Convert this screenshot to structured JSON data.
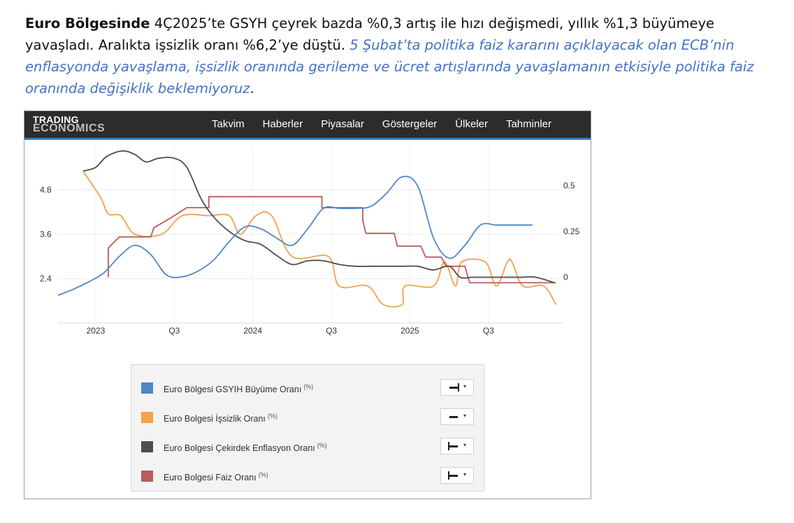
{
  "intro": {
    "bold_lead": "Euro Bölgesinde",
    "plain_text": " 4Ç2025’te GSYH çeyrek bazda %0,3 artış ile hızı değişmedi, yıllık %1,3 büyümeye yavaşladı. Aralıkta işsizlik oranı %6,2’ye düştü. ",
    "italic_text": "5 Şubat’ta politika faiz kararını açıklayacak olan ECB’nin enflasyonda yavaşlama, işsizlik oranında gerileme ve ücret artışlarında yavaşlamanın etkisiyle politika faiz oranında değişiklik beklemiyoruz",
    "end_period": "."
  },
  "header": {
    "logo_line1": "TRADING",
    "logo_line2": "ECONOMICS",
    "nav": [
      "Takvim",
      "Haberler",
      "Piyasalar",
      "Göstergeler",
      "Ülkeler",
      "Tahminler"
    ]
  },
  "colors": {
    "gdp": "#4f86c6",
    "unemployment": "#f4a14b",
    "core_inflation": "#4d4d4d",
    "interest_rate": "#b85c5c",
    "header_bg": "#2c2c2c",
    "header_accent": "#3a77b7"
  },
  "legend": {
    "items": [
      {
        "label": "Euro Bölgesi GSYIH Büyüme Oranı",
        "unit": "(%)",
        "color_key": "gdp",
        "icon": "bar-right-icon"
      },
      {
        "label": "Euro Bolgesi İşsizlik Oranı",
        "unit": "(%)",
        "color_key": "unemployment",
        "icon": "bar-icon"
      },
      {
        "label": "Euro Bolgesi Çekirdek Enflasyon Oranı",
        "unit": "(%)",
        "color_key": "core_inflation",
        "icon": "bar-left-icon"
      },
      {
        "label": "Euro Bolgesi Faiz Oranı",
        "unit": "(%)",
        "color_key": "interest_rate",
        "icon": "bar-left-icon"
      }
    ]
  },
  "chart_data": {
    "type": "line",
    "x_tick_labels": [
      {
        "t": 2023.0,
        "label": "2023"
      },
      {
        "t": 2023.5,
        "label": "Q3"
      },
      {
        "t": 2024.0,
        "label": "2024"
      },
      {
        "t": 2024.5,
        "label": "Q3"
      },
      {
        "t": 2025.0,
        "label": "2025"
      },
      {
        "t": 2025.5,
        "label": "Q3"
      }
    ],
    "xlim": [
      2022.76,
      2025.95
    ],
    "left_axis": {
      "ticks": [
        2.4,
        3.6,
        4.8
      ],
      "ylim": [
        1.2,
        6.0
      ]
    },
    "right_axis": {
      "ticks": [
        0,
        0.25,
        0.5
      ],
      "ylim": [
        -0.25,
        0.72
      ]
    },
    "grid": true,
    "legend_position": "bottom",
    "series": [
      {
        "name": "Euro Bölgesi GSYIH Büyüme Oranı",
        "axis": "left",
        "color_key": "gdp",
        "style": "smooth",
        "points": [
          [
            2022.76,
            1.95
          ],
          [
            2022.85,
            2.1
          ],
          [
            2022.95,
            2.3
          ],
          [
            2023.05,
            2.55
          ],
          [
            2023.15,
            3.0
          ],
          [
            2023.25,
            3.3
          ],
          [
            2023.35,
            3.05
          ],
          [
            2023.45,
            2.5
          ],
          [
            2023.55,
            2.45
          ],
          [
            2023.65,
            2.6
          ],
          [
            2023.75,
            2.9
          ],
          [
            2023.85,
            3.4
          ],
          [
            2023.95,
            3.8
          ],
          [
            2024.05,
            3.75
          ],
          [
            2024.15,
            3.5
          ],
          [
            2024.25,
            3.3
          ],
          [
            2024.35,
            3.75
          ],
          [
            2024.45,
            4.3
          ],
          [
            2024.55,
            4.3
          ],
          [
            2024.65,
            4.3
          ],
          [
            2024.75,
            4.35
          ],
          [
            2024.85,
            4.7
          ],
          [
            2024.95,
            5.15
          ],
          [
            2025.05,
            4.9
          ],
          [
            2025.15,
            3.5
          ],
          [
            2025.25,
            2.95
          ],
          [
            2025.35,
            3.3
          ],
          [
            2025.45,
            3.85
          ],
          [
            2025.55,
            3.85
          ],
          [
            2025.65,
            3.85
          ],
          [
            2025.78,
            3.85
          ]
        ]
      },
      {
        "name": "Euro Bolgesi İşsizlik Oranı",
        "axis": "left",
        "color_key": "unemployment",
        "style": "smooth",
        "points": [
          [
            2022.92,
            5.3
          ],
          [
            2023.03,
            4.6
          ],
          [
            2023.08,
            4.15
          ],
          [
            2023.16,
            4.1
          ],
          [
            2023.25,
            3.6
          ],
          [
            2023.42,
            3.6
          ],
          [
            2023.55,
            4.1
          ],
          [
            2023.72,
            4.1
          ],
          [
            2023.85,
            4.1
          ],
          [
            2023.92,
            3.6
          ],
          [
            2024.02,
            4.1
          ],
          [
            2024.12,
            4.1
          ],
          [
            2024.25,
            3.0
          ],
          [
            2024.48,
            3.0
          ],
          [
            2024.55,
            2.2
          ],
          [
            2024.73,
            2.2
          ],
          [
            2024.83,
            1.7
          ],
          [
            2024.95,
            1.7
          ],
          [
            2024.97,
            2.2
          ],
          [
            2025.15,
            2.2
          ],
          [
            2025.22,
            2.85
          ],
          [
            2025.29,
            2.2
          ],
          [
            2025.33,
            2.85
          ],
          [
            2025.48,
            2.85
          ],
          [
            2025.55,
            2.2
          ],
          [
            2025.62,
            2.85
          ],
          [
            2025.65,
            2.85
          ],
          [
            2025.72,
            2.2
          ],
          [
            2025.85,
            2.2
          ],
          [
            2025.93,
            1.7
          ]
        ]
      },
      {
        "name": "Euro Bolgesi Çekirdek Enflasyon Oranı",
        "axis": "right",
        "color_key": "core_inflation",
        "style": "smooth",
        "points": [
          [
            2022.92,
            0.58
          ],
          [
            2023.0,
            0.6
          ],
          [
            2023.07,
            0.66
          ],
          [
            2023.17,
            0.69
          ],
          [
            2023.25,
            0.67
          ],
          [
            2023.32,
            0.63
          ],
          [
            2023.4,
            0.65
          ],
          [
            2023.5,
            0.65
          ],
          [
            2023.58,
            0.6
          ],
          [
            2023.67,
            0.43
          ],
          [
            2023.75,
            0.33
          ],
          [
            2023.85,
            0.25
          ],
          [
            2023.95,
            0.2
          ],
          [
            2024.05,
            0.18
          ],
          [
            2024.15,
            0.12
          ],
          [
            2024.25,
            0.07
          ],
          [
            2024.35,
            0.09
          ],
          [
            2024.45,
            0.09
          ],
          [
            2024.55,
            0.07
          ],
          [
            2024.65,
            0.06
          ],
          [
            2024.75,
            0.06
          ],
          [
            2024.85,
            0.06
          ],
          [
            2024.95,
            0.06
          ],
          [
            2025.05,
            0.06
          ],
          [
            2025.15,
            0.04
          ],
          [
            2025.25,
            0.06
          ],
          [
            2025.32,
            0.0
          ],
          [
            2025.4,
            0.0
          ],
          [
            2025.5,
            0.0
          ],
          [
            2025.6,
            0.0
          ],
          [
            2025.7,
            0.0
          ],
          [
            2025.8,
            0.0
          ],
          [
            2025.92,
            -0.03
          ]
        ]
      },
      {
        "name": "Euro Bolgesi Faiz Oranı",
        "axis": "right",
        "color_key": "interest_rate",
        "style": "step",
        "points": [
          [
            2023.08,
            0.0
          ],
          [
            2023.08,
            0.16
          ],
          [
            2023.15,
            0.22
          ],
          [
            2023.35,
            0.22
          ],
          [
            2023.37,
            0.27
          ],
          [
            2023.47,
            0.32
          ],
          [
            2023.58,
            0.38
          ],
          [
            2023.72,
            0.38
          ],
          [
            2023.72,
            0.44
          ],
          [
            2024.44,
            0.44
          ],
          [
            2024.44,
            0.38
          ],
          [
            2024.7,
            0.38
          ],
          [
            2024.7,
            0.31
          ],
          [
            2024.72,
            0.24
          ],
          [
            2024.9,
            0.24
          ],
          [
            2024.92,
            0.17
          ],
          [
            2025.07,
            0.17
          ],
          [
            2025.1,
            0.11
          ],
          [
            2025.2,
            0.11
          ],
          [
            2025.23,
            0.06
          ],
          [
            2025.35,
            0.06
          ],
          [
            2025.38,
            -0.03
          ],
          [
            2025.93,
            -0.03
          ]
        ]
      }
    ]
  }
}
